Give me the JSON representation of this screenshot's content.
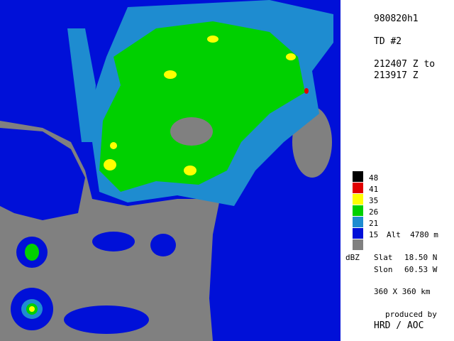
{
  "header": {
    "id": "980820h1",
    "storm": "TD #2",
    "time_line1": "212407 Z to",
    "time_line2": "213917 Z"
  },
  "legend": {
    "items": [
      {
        "label": "48",
        "color": "#000000"
      },
      {
        "label": "41",
        "color": "#e00000"
      },
      {
        "label": "35",
        "color": "#ffff00"
      },
      {
        "label": "26",
        "color": "#00d000"
      },
      {
        "label": "21",
        "color": "#1e8cd0"
      },
      {
        "label": "15",
        "color": "#0010d8"
      }
    ],
    "unit": "dBZ",
    "altitude": "Alt  4780 m"
  },
  "location": {
    "slat_label": "Slat",
    "slat": "18.50 N",
    "slon_label": "Slon",
    "slon": "60.53 W"
  },
  "scale": "360 X 360 km",
  "credit": {
    "line1": "produced by",
    "line2": "HRD / AOC"
  }
}
